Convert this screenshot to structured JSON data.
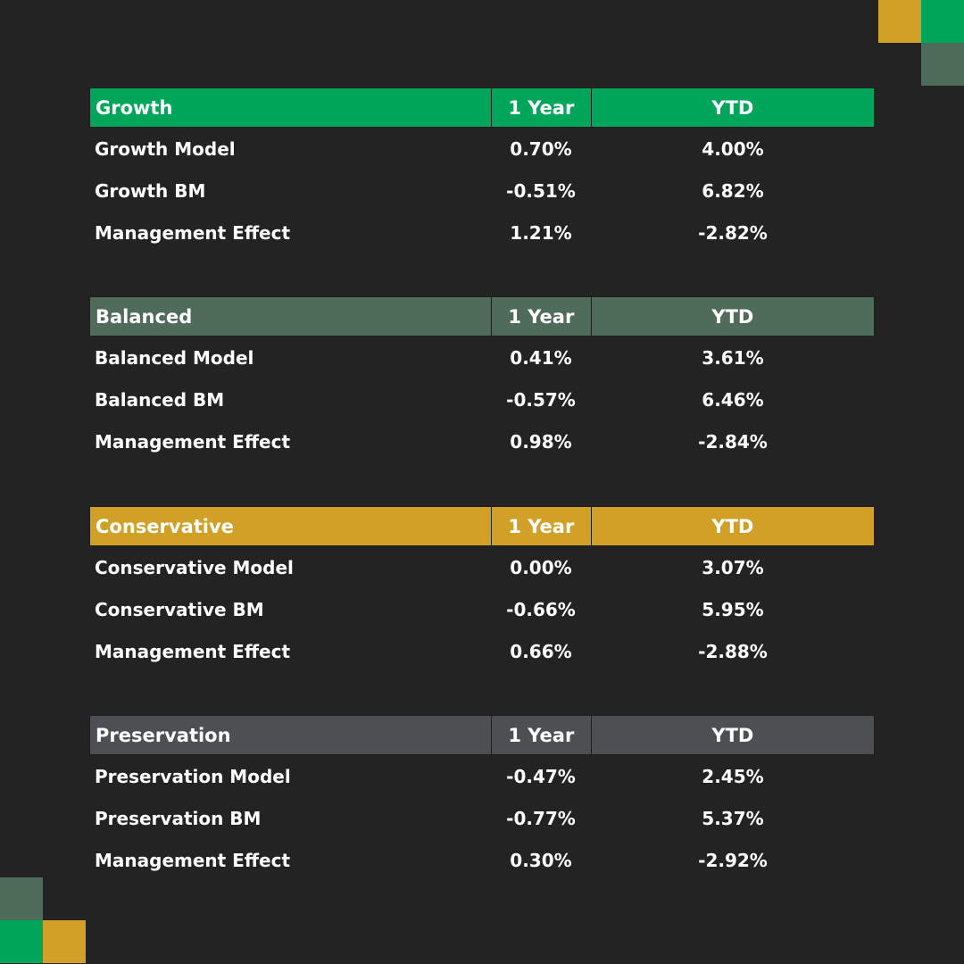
{
  "colors": {
    "background": "#232323",
    "growth": "#00a65a",
    "balanced": "#4f6b59",
    "conservative": "#d0a027",
    "preservation": "#4e4f53"
  },
  "tables": [
    {
      "header": {
        "name": "Growth",
        "col1": "1 Year",
        "col2": "YTD"
      },
      "color": "#00a65a",
      "rows": [
        {
          "label": "Growth Model",
          "one_year": "0.70%",
          "ytd": "4.00%"
        },
        {
          "label": "Growth BM",
          "one_year": "-0.51%",
          "ytd": "6.82%"
        },
        {
          "label": "Management Effect",
          "one_year": "1.21%",
          "ytd": "-2.82%"
        }
      ]
    },
    {
      "header": {
        "name": "Balanced",
        "col1": "1 Year",
        "col2": "YTD"
      },
      "color": "#4f6b59",
      "rows": [
        {
          "label": "Balanced Model",
          "one_year": "0.41%",
          "ytd": "3.61%"
        },
        {
          "label": "Balanced BM",
          "one_year": "-0.57%",
          "ytd": "6.46%"
        },
        {
          "label": "Management Effect",
          "one_year": "0.98%",
          "ytd": "-2.84%"
        }
      ]
    },
    {
      "header": {
        "name": "Conservative",
        "col1": "1 Year",
        "col2": "YTD"
      },
      "color": "#d0a027",
      "rows": [
        {
          "label": "Conservative Model",
          "one_year": "0.00%",
          "ytd": "3.07%"
        },
        {
          "label": "Conservative BM",
          "one_year": "-0.66%",
          "ytd": "5.95%"
        },
        {
          "label": "Management Effect",
          "one_year": "0.66%",
          "ytd": "-2.88%"
        }
      ]
    },
    {
      "header": {
        "name": "Preservation",
        "col1": "1 Year",
        "col2": "YTD"
      },
      "color": "#4e4f53",
      "rows": [
        {
          "label": "Preservation Model",
          "one_year": "-0.47%",
          "ytd": "2.45%"
        },
        {
          "label": "Preservation BM",
          "one_year": "-0.77%",
          "ytd": "5.37%"
        },
        {
          "label": "Management Effect",
          "one_year": "0.30%",
          "ytd": "-2.92%"
        }
      ]
    }
  ]
}
